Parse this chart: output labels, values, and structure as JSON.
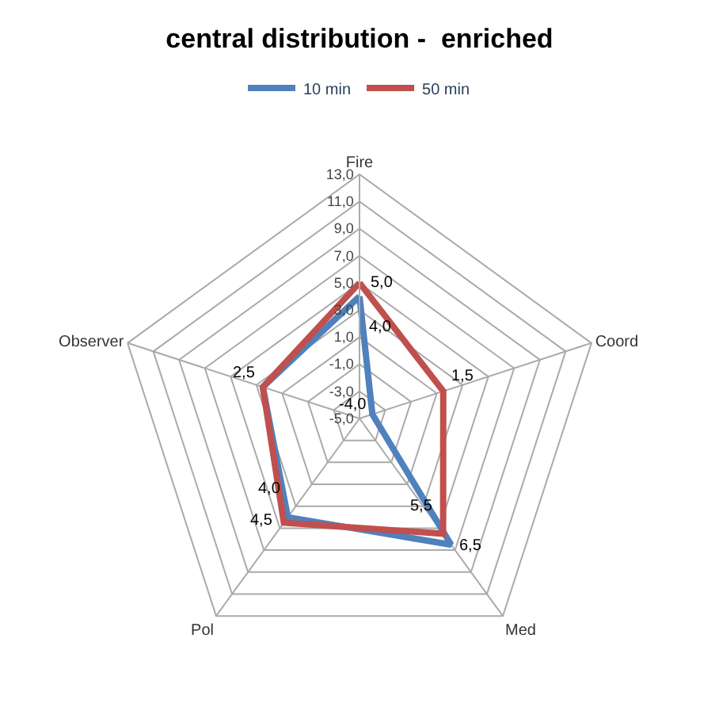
{
  "chart_data": {
    "type": "radar",
    "title": "central distribution -  enriched",
    "categories": [
      "Fire",
      "Coord",
      "Med",
      "Pol",
      "Observer"
    ],
    "series": [
      {
        "name": "10 min",
        "color": "#4f81bd",
        "values": [
          4.0,
          -4.0,
          6.5,
          4.0,
          2.5
        ],
        "value_labels": [
          "4,0",
          "-4,0",
          "6,5",
          "4,0",
          null
        ]
      },
      {
        "name": "50 min",
        "color": "#c0504d",
        "values": [
          5.0,
          1.5,
          5.5,
          4.5,
          2.5
        ],
        "value_labels": [
          "5,0",
          "1,5",
          "5,5",
          "4,5",
          "2,5"
        ]
      }
    ],
    "ylim": [
      -5,
      13
    ],
    "yticks": [
      {
        "value": -5,
        "label": "-5,0"
      },
      {
        "value": -3,
        "label": "-3,0"
      },
      {
        "value": -1,
        "label": "-1,0"
      },
      {
        "value": 1,
        "label": "1,0"
      },
      {
        "value": 3,
        "label": "3,0"
      },
      {
        "value": 5,
        "label": "5,0"
      },
      {
        "value": 7,
        "label": "7,0"
      },
      {
        "value": 9,
        "label": "9,0"
      },
      {
        "value": 11,
        "label": "11,0"
      },
      {
        "value": 13,
        "label": "13,0"
      }
    ],
    "grid": true,
    "legend": "top",
    "marker": "none",
    "line_style": "solid"
  }
}
